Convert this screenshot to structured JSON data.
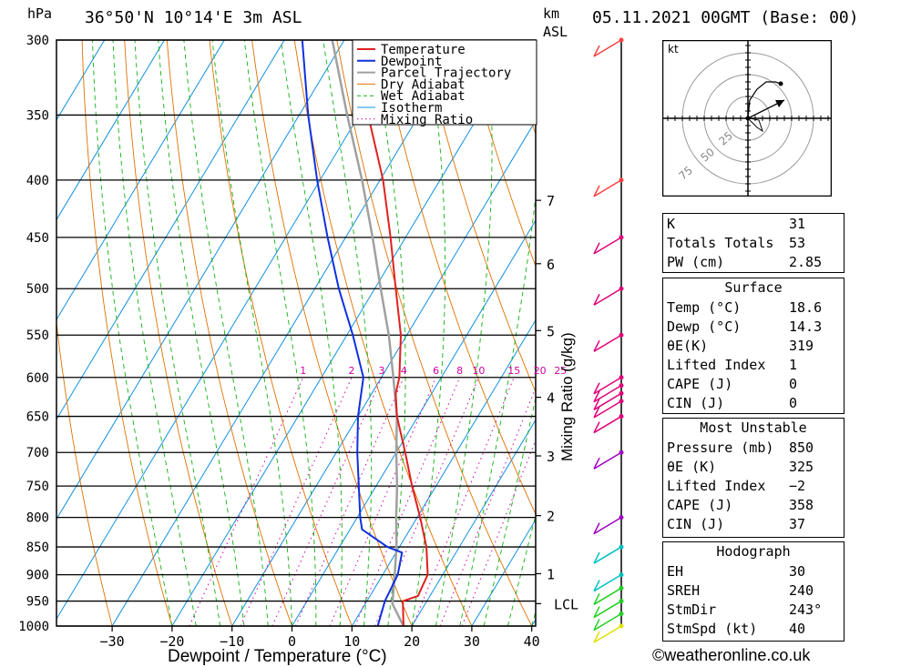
{
  "header": {
    "hpa_label": "hPa",
    "location": "36°50'N  10°14'E  3m  ASL",
    "km_label": "km",
    "asl_label": "ASL",
    "datetime": "05.11.2021  00GMT  (Base: 00)"
  },
  "footer": {
    "copyright": "©weatheronline.co.uk"
  },
  "legend": [
    {
      "label": "Temperature",
      "color": "#e02020"
    },
    {
      "label": "Dewpoint",
      "color": "#1030e0"
    },
    {
      "label": "Parcel Trajectory",
      "color": "#a0a0a0"
    },
    {
      "label": "Dry Adiabat",
      "color": "#e07000"
    },
    {
      "label": "Wet Adiabat",
      "color": "#10b010"
    },
    {
      "label": "Isotherm",
      "color": "#1090e0"
    },
    {
      "label": "Mixing Ratio",
      "color": "#d000a0"
    }
  ],
  "chart_data": {
    "type": "skew-t",
    "xlabel": "Dewpoint / Temperature (°C)",
    "mixing_ratio_label": "Mixing Ratio (g/kg)",
    "x_ticks": [
      "−30",
      "−20",
      "−10",
      "0",
      "10",
      "20",
      "30",
      "40"
    ],
    "x_tick_values": [
      -30,
      -20,
      -10,
      0,
      10,
      20,
      30,
      40
    ],
    "xlim": [
      -40,
      40
    ],
    "pressure_levels": [
      300,
      350,
      400,
      450,
      500,
      550,
      600,
      650,
      700,
      750,
      800,
      850,
      900,
      950,
      1000
    ],
    "km_ticks": [
      {
        "label": "7",
        "p": 417
      },
      {
        "label": "6",
        "p": 475
      },
      {
        "label": "5",
        "p": 545
      },
      {
        "label": "4",
        "p": 625
      },
      {
        "label": "3",
        "p": 705
      },
      {
        "label": "2",
        "p": 797
      },
      {
        "label": "1",
        "p": 898
      },
      {
        "label": "LCL",
        "p": 955
      }
    ],
    "mixing_ratio_ticks": [
      "1",
      "2",
      "3",
      "4",
      "6",
      "8",
      "10",
      "15",
      "20",
      "25"
    ],
    "mixing_ratio_values": [
      1,
      2,
      3,
      4,
      6,
      8,
      10,
      15,
      20,
      25
    ],
    "temperature": [
      {
        "p": 1000,
        "t": 18.6
      },
      {
        "p": 950,
        "t": 16.0
      },
      {
        "p": 940,
        "t": 18.0
      },
      {
        "p": 900,
        "t": 17.5
      },
      {
        "p": 850,
        "t": 14.5
      },
      {
        "p": 800,
        "t": 10.5
      },
      {
        "p": 750,
        "t": 6.0
      },
      {
        "p": 700,
        "t": 1.5
      },
      {
        "p": 650,
        "t": -3.5
      },
      {
        "p": 620,
        "t": -6.0
      },
      {
        "p": 600,
        "t": -7.0
      },
      {
        "p": 550,
        "t": -11.0
      },
      {
        "p": 500,
        "t": -16.5
      },
      {
        "p": 450,
        "t": -22.5
      },
      {
        "p": 400,
        "t": -29.5
      },
      {
        "p": 350,
        "t": -38.5
      },
      {
        "p": 300,
        "t": -47.5
      }
    ],
    "dewpoint": [
      {
        "p": 1000,
        "t": 14.3
      },
      {
        "p": 950,
        "t": 13.0
      },
      {
        "p": 900,
        "t": 12.5
      },
      {
        "p": 860,
        "t": 11.0
      },
      {
        "p": 850,
        "t": 8.0
      },
      {
        "p": 820,
        "t": 2.0
      },
      {
        "p": 800,
        "t": 0.5
      },
      {
        "p": 700,
        "t": -6.5
      },
      {
        "p": 650,
        "t": -10.0
      },
      {
        "p": 600,
        "t": -13.0
      },
      {
        "p": 550,
        "t": -19.0
      },
      {
        "p": 500,
        "t": -26.0
      },
      {
        "p": 450,
        "t": -33.0
      },
      {
        "p": 400,
        "t": -40.5
      },
      {
        "p": 350,
        "t": -48.5
      },
      {
        "p": 300,
        "t": -57.0
      }
    ],
    "parcel": [
      {
        "p": 1000,
        "t": 18.6
      },
      {
        "p": 955,
        "t": 14.5
      },
      {
        "p": 900,
        "t": 12.0
      },
      {
        "p": 850,
        "t": 9.5
      },
      {
        "p": 800,
        "t": 6.5
      },
      {
        "p": 750,
        "t": 3.5
      },
      {
        "p": 700,
        "t": 0.0
      },
      {
        "p": 650,
        "t": -3.5
      },
      {
        "p": 600,
        "t": -8.0
      },
      {
        "p": 550,
        "t": -13.0
      },
      {
        "p": 500,
        "t": -19.0
      },
      {
        "p": 450,
        "t": -25.5
      },
      {
        "p": 400,
        "t": -33.0
      },
      {
        "p": 350,
        "t": -42.0
      },
      {
        "p": 300,
        "t": -52.0
      }
    ],
    "wind_levels": [
      300,
      400,
      450,
      500,
      550,
      600,
      610,
      620,
      630,
      650,
      700,
      800,
      850,
      900,
      925,
      950,
      975,
      1000
    ]
  },
  "hodograph": {
    "unit": "kt",
    "ring_labels": [
      "25",
      "50",
      "75"
    ]
  },
  "indices": {
    "general": [
      {
        "label": "K",
        "value": "31"
      },
      {
        "label": "Totals Totals",
        "value": "53"
      },
      {
        "label": "PW (cm)",
        "value": "2.85"
      }
    ],
    "surface": {
      "title": "Surface",
      "rows": [
        {
          "label": "Temp (°C)",
          "value": "18.6"
        },
        {
          "label": "Dewp (°C)",
          "value": "14.3"
        },
        {
          "label": "θE(K)",
          "value": "319"
        },
        {
          "label": "Lifted Index",
          "value": "1"
        },
        {
          "label": "CAPE (J)",
          "value": "0"
        },
        {
          "label": "CIN (J)",
          "value": "0"
        }
      ]
    },
    "most_unstable": {
      "title": "Most Unstable",
      "rows": [
        {
          "label": "Pressure (mb)",
          "value": "850"
        },
        {
          "label": "θE (K)",
          "value": "325"
        },
        {
          "label": "Lifted Index",
          "value": "−2"
        },
        {
          "label": "CAPE (J)",
          "value": "358"
        },
        {
          "label": "CIN (J)",
          "value": "37"
        }
      ]
    },
    "hodograph": {
      "title": "Hodograph",
      "rows": [
        {
          "label": "EH",
          "value": "30"
        },
        {
          "label": "SREH",
          "value": "240"
        },
        {
          "label": "StmDir",
          "value": "243°"
        },
        {
          "label": "StmSpd (kt)",
          "value": "40"
        }
      ]
    }
  }
}
